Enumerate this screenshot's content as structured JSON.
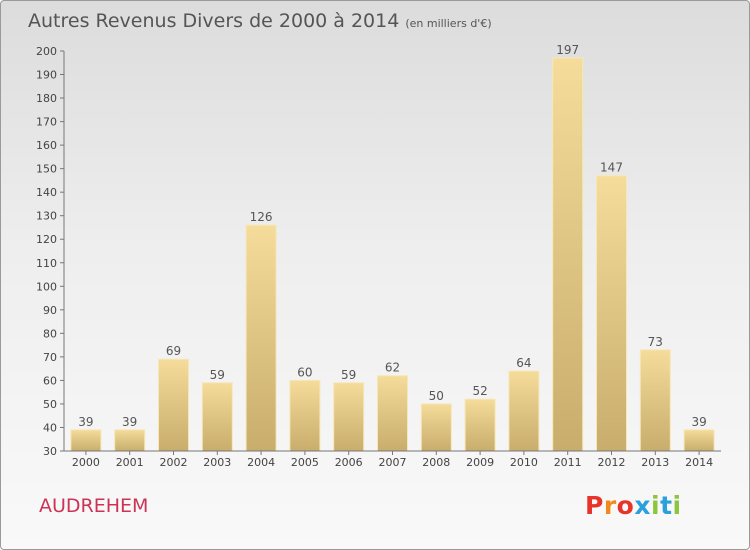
{
  "header": {
    "title": "Autres Revenus Divers de 2000 à 2014",
    "unit": "(en milliers d'€)"
  },
  "footer": {
    "place": "AUDREHEM",
    "logo_text": "Proxiti",
    "place_color": "#cc3355",
    "logo_colors": [
      "#e8332a",
      "#f08a1c",
      "#2aa0dc",
      "#8cc63f"
    ]
  },
  "chart_data": {
    "type": "bar",
    "title": "Autres Revenus Divers de 2000 à 2014",
    "subtitle": "(en milliers d'€)",
    "xlabel": "",
    "ylabel": "",
    "categories": [
      "2000",
      "2001",
      "2002",
      "2003",
      "2004",
      "2005",
      "2006",
      "2007",
      "2008",
      "2009",
      "2010",
      "2011",
      "2012",
      "2013",
      "2014"
    ],
    "values": [
      39,
      39,
      69,
      59,
      126,
      60,
      59,
      62,
      50,
      52,
      64,
      197,
      147,
      73,
      39
    ],
    "ylim": [
      30,
      200
    ],
    "ytick_step": 10,
    "grid": false,
    "data_labels": true,
    "bar_color": "#e8cc82"
  }
}
